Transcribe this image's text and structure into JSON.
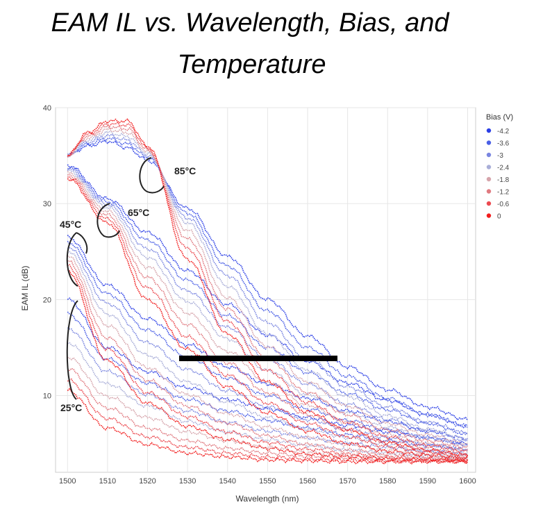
{
  "title_line1": "EAM IL vs. Wavelength, Bias, and",
  "title_line2": "Temperature",
  "chart_data": {
    "type": "scatter",
    "xlabel": "Wavelength (nm)",
    "ylabel": "EAM IL (dB)",
    "xlim": [
      1497,
      1602
    ],
    "ylim": [
      2,
      40
    ],
    "xticks": [
      1500,
      1510,
      1520,
      1530,
      1540,
      1550,
      1560,
      1570,
      1580,
      1590,
      1600
    ],
    "yticks": [
      10,
      20,
      30,
      40
    ],
    "grid": true,
    "legend": {
      "title": "Bias (V)",
      "placement": "right",
      "entries": [
        {
          "label": "-4.2",
          "color": "#2b3fe6"
        },
        {
          "label": "-3.6",
          "color": "#4a5fe6"
        },
        {
          "label": "-3",
          "color": "#7a86e0"
        },
        {
          "label": "-2.4",
          "color": "#a9aed8"
        },
        {
          "label": "-1.8",
          "color": "#d6a4ab"
        },
        {
          "label": "-1.2",
          "color": "#e07a80"
        },
        {
          "label": "-0.6",
          "color": "#ec4a50"
        },
        {
          "label": "0",
          "color": "#f21c1c"
        }
      ]
    },
    "annotations": [
      "25°C",
      "45°C",
      "65°C",
      "85°C"
    ],
    "series": [
      {
        "temp": "25°C",
        "bias": "-4.2",
        "x": [
          1500,
          1510,
          1520,
          1530,
          1540,
          1550,
          1560,
          1570,
          1580,
          1590,
          1600
        ],
        "y": [
          20.0,
          15.0,
          12.5,
          10.8,
          9.6,
          8.6,
          7.7,
          6.9,
          6.2,
          5.6,
          5.0
        ]
      },
      {
        "temp": "25°C",
        "bias": "-3.6",
        "x": [
          1500,
          1510,
          1520,
          1530,
          1540,
          1550,
          1560,
          1570,
          1580,
          1590,
          1600
        ],
        "y": [
          18.5,
          13.8,
          11.3,
          9.6,
          8.4,
          7.4,
          6.6,
          5.9,
          5.3,
          4.8,
          4.4
        ]
      },
      {
        "temp": "25°C",
        "bias": "-3",
        "x": [
          1500,
          1510,
          1520,
          1530,
          1540,
          1550,
          1560,
          1570,
          1580,
          1590,
          1600
        ],
        "y": [
          17.0,
          12.5,
          10.1,
          8.4,
          7.2,
          6.3,
          5.6,
          5.0,
          4.6,
          4.2,
          3.9
        ]
      },
      {
        "temp": "25°C",
        "bias": "-2.4",
        "x": [
          1500,
          1510,
          1520,
          1530,
          1540,
          1550,
          1560,
          1570,
          1580,
          1590,
          1600
        ],
        "y": [
          15.5,
          11.2,
          8.9,
          7.3,
          6.2,
          5.4,
          4.8,
          4.3,
          4.0,
          3.7,
          3.5
        ]
      },
      {
        "temp": "25°C",
        "bias": "-1.8",
        "x": [
          1500,
          1510,
          1520,
          1530,
          1540,
          1550,
          1560,
          1570,
          1580,
          1590,
          1600
        ],
        "y": [
          14.0,
          9.9,
          7.7,
          6.2,
          5.3,
          4.6,
          4.1,
          3.8,
          3.6,
          3.4,
          3.3
        ]
      },
      {
        "temp": "25°C",
        "bias": "-1.2",
        "x": [
          1500,
          1510,
          1520,
          1530,
          1540,
          1550,
          1560,
          1570,
          1580,
          1590,
          1600
        ],
        "y": [
          12.8,
          8.7,
          6.6,
          5.3,
          4.5,
          4.0,
          3.7,
          3.5,
          3.3,
          3.2,
          3.2
        ]
      },
      {
        "temp": "25°C",
        "bias": "-0.6",
        "x": [
          1500,
          1510,
          1520,
          1530,
          1540,
          1550,
          1560,
          1570,
          1580,
          1590,
          1600
        ],
        "y": [
          11.6,
          7.6,
          5.7,
          4.6,
          4.0,
          3.6,
          3.4,
          3.3,
          3.2,
          3.2,
          3.1
        ]
      },
      {
        "temp": "25°C",
        "bias": "0",
        "x": [
          1500,
          1510,
          1520,
          1530,
          1540,
          1550,
          1560,
          1570,
          1580,
          1590,
          1600
        ],
        "y": [
          10.5,
          6.6,
          4.9,
          4.0,
          3.6,
          3.3,
          3.2,
          3.1,
          3.1,
          3.1,
          3.1
        ]
      },
      {
        "temp": "45°C",
        "bias": "-4.2",
        "x": [
          1500,
          1510,
          1520,
          1530,
          1540,
          1550,
          1560,
          1570,
          1580,
          1590,
          1600
        ],
        "y": [
          26.5,
          21.5,
          18.0,
          15.3,
          13.0,
          11.2,
          9.7,
          8.4,
          7.3,
          6.3,
          5.5
        ]
      },
      {
        "temp": "45°C",
        "bias": "-3.6",
        "x": [
          1500,
          1510,
          1520,
          1530,
          1540,
          1550,
          1560,
          1570,
          1580,
          1590,
          1600
        ],
        "y": [
          26.0,
          20.6,
          16.8,
          14.0,
          11.8,
          10.0,
          8.6,
          7.4,
          6.4,
          5.6,
          4.9
        ]
      },
      {
        "temp": "45°C",
        "bias": "-3",
        "x": [
          1500,
          1510,
          1520,
          1530,
          1540,
          1550,
          1560,
          1570,
          1580,
          1590,
          1600
        ],
        "y": [
          25.5,
          19.6,
          15.5,
          12.7,
          10.5,
          8.8,
          7.5,
          6.5,
          5.6,
          4.9,
          4.3
        ]
      },
      {
        "temp": "45°C",
        "bias": "-2.4",
        "x": [
          1500,
          1510,
          1520,
          1530,
          1540,
          1550,
          1560,
          1570,
          1580,
          1590,
          1600
        ],
        "y": [
          25.0,
          18.5,
          14.2,
          11.4,
          9.3,
          7.7,
          6.5,
          5.6,
          4.9,
          4.3,
          3.9
        ]
      },
      {
        "temp": "45°C",
        "bias": "-1.8",
        "x": [
          1500,
          1510,
          1520,
          1530,
          1540,
          1550,
          1560,
          1570,
          1580,
          1590,
          1600
        ],
        "y": [
          24.5,
          17.3,
          12.9,
          10.1,
          8.1,
          6.7,
          5.6,
          4.9,
          4.3,
          3.9,
          3.6
        ]
      },
      {
        "temp": "45°C",
        "bias": "-1.2",
        "x": [
          1500,
          1510,
          1520,
          1530,
          1540,
          1550,
          1560,
          1570,
          1580,
          1590,
          1600
        ],
        "y": [
          24.0,
          16.0,
          11.6,
          8.9,
          7.1,
          5.8,
          4.9,
          4.3,
          3.9,
          3.6,
          3.4
        ]
      },
      {
        "temp": "45°C",
        "bias": "-0.6",
        "x": [
          1500,
          1510,
          1520,
          1530,
          1540,
          1550,
          1560,
          1570,
          1580,
          1590,
          1600
        ],
        "y": [
          23.5,
          14.8,
          10.3,
          7.8,
          6.2,
          5.1,
          4.4,
          3.9,
          3.6,
          3.4,
          3.3
        ]
      },
      {
        "temp": "45°C",
        "bias": "0",
        "x": [
          1500,
          1510,
          1520,
          1530,
          1540,
          1550,
          1560,
          1570,
          1580,
          1590,
          1600
        ],
        "y": [
          23.0,
          13.6,
          9.2,
          6.8,
          5.4,
          4.5,
          3.9,
          3.6,
          3.4,
          3.3,
          3.2
        ]
      },
      {
        "temp": "65°C",
        "bias": "-4.2",
        "x": [
          1500,
          1510,
          1520,
          1530,
          1540,
          1550,
          1560,
          1570,
          1580,
          1590,
          1600
        ],
        "y": [
          34.0,
          30.5,
          27.0,
          23.0,
          19.5,
          16.3,
          13.6,
          11.3,
          9.5,
          8.0,
          6.8
        ]
      },
      {
        "temp": "65°C",
        "bias": "-3.6",
        "x": [
          1500,
          1510,
          1520,
          1530,
          1540,
          1550,
          1560,
          1570,
          1580,
          1590,
          1600
        ],
        "y": [
          33.8,
          30.2,
          26.2,
          22.0,
          18.3,
          15.0,
          12.4,
          10.2,
          8.5,
          7.1,
          6.0
        ]
      },
      {
        "temp": "65°C",
        "bias": "-3",
        "x": [
          1500,
          1510,
          1520,
          1530,
          1540,
          1550,
          1560,
          1570,
          1580,
          1590,
          1600
        ],
        "y": [
          33.6,
          29.9,
          25.3,
          20.9,
          17.1,
          13.8,
          11.2,
          9.1,
          7.5,
          6.3,
          5.3
        ]
      },
      {
        "temp": "65°C",
        "bias": "-2.4",
        "x": [
          1500,
          1510,
          1520,
          1530,
          1540,
          1550,
          1560,
          1570,
          1580,
          1590,
          1600
        ],
        "y": [
          33.4,
          29.6,
          24.4,
          19.8,
          15.9,
          12.6,
          10.1,
          8.2,
          6.7,
          5.6,
          4.8
        ]
      },
      {
        "temp": "65°C",
        "bias": "-1.8",
        "x": [
          1500,
          1510,
          1520,
          1530,
          1540,
          1550,
          1560,
          1570,
          1580,
          1590,
          1600
        ],
        "y": [
          33.2,
          29.2,
          23.4,
          18.6,
          14.6,
          11.4,
          9.0,
          7.2,
          5.9,
          5.0,
          4.3
        ]
      },
      {
        "temp": "65°C",
        "bias": "-1.2",
        "x": [
          1500,
          1510,
          1520,
          1530,
          1540,
          1550,
          1560,
          1570,
          1580,
          1590,
          1600
        ],
        "y": [
          33.0,
          28.8,
          22.3,
          17.4,
          13.4,
          10.3,
          8.0,
          6.4,
          5.2,
          4.5,
          3.9
        ]
      },
      {
        "temp": "65°C",
        "bias": "-0.6",
        "x": [
          1500,
          1510,
          1520,
          1530,
          1540,
          1550,
          1560,
          1570,
          1580,
          1590,
          1600
        ],
        "y": [
          32.8,
          28.4,
          21.2,
          16.1,
          12.1,
          9.2,
          7.1,
          5.7,
          4.7,
          4.1,
          3.6
        ]
      },
      {
        "temp": "65°C",
        "bias": "0",
        "x": [
          1500,
          1510,
          1520,
          1530,
          1540,
          1550,
          1560,
          1570,
          1580,
          1590,
          1600
        ],
        "y": [
          32.6,
          28.0,
          20.0,
          14.8,
          10.9,
          8.2,
          6.3,
          5.0,
          4.2,
          3.8,
          3.4
        ]
      },
      {
        "temp": "85°C",
        "bias": "-4.2",
        "x": [
          1500,
          1505,
          1510,
          1515,
          1520,
          1530,
          1540,
          1550,
          1560,
          1570,
          1580,
          1590,
          1600
        ],
        "y": [
          35.0,
          36.0,
          36.5,
          35.8,
          34.5,
          29.5,
          24.5,
          20.0,
          16.2,
          13.0,
          10.6,
          8.8,
          7.5
        ]
      },
      {
        "temp": "85°C",
        "bias": "-3.6",
        "x": [
          1500,
          1505,
          1510,
          1515,
          1520,
          1530,
          1540,
          1550,
          1560,
          1570,
          1580,
          1590,
          1600
        ],
        "y": [
          35.0,
          36.2,
          36.8,
          36.2,
          34.8,
          29.0,
          23.5,
          18.8,
          15.0,
          12.0,
          9.7,
          8.0,
          6.8
        ]
      },
      {
        "temp": "85°C",
        "bias": "-3",
        "x": [
          1500,
          1505,
          1510,
          1515,
          1520,
          1530,
          1540,
          1550,
          1560,
          1570,
          1580,
          1590,
          1600
        ],
        "y": [
          35.0,
          36.4,
          37.1,
          36.6,
          35.0,
          28.5,
          22.5,
          17.6,
          13.8,
          10.9,
          8.8,
          7.2,
          6.1
        ]
      },
      {
        "temp": "85°C",
        "bias": "-2.4",
        "x": [
          1500,
          1505,
          1510,
          1515,
          1520,
          1530,
          1540,
          1550,
          1560,
          1570,
          1580,
          1590,
          1600
        ],
        "y": [
          35.0,
          36.6,
          37.4,
          37.0,
          35.2,
          28.0,
          21.4,
          16.4,
          12.6,
          9.9,
          7.9,
          6.5,
          5.5
        ]
      },
      {
        "temp": "85°C",
        "bias": "-1.8",
        "x": [
          1500,
          1505,
          1510,
          1515,
          1520,
          1530,
          1540,
          1550,
          1560,
          1570,
          1580,
          1590,
          1600
        ],
        "y": [
          35.0,
          36.8,
          37.7,
          37.4,
          35.4,
          27.2,
          20.2,
          15.1,
          11.4,
          8.9,
          7.1,
          5.9,
          5.0
        ]
      },
      {
        "temp": "85°C",
        "bias": "-1.2",
        "x": [
          1500,
          1505,
          1510,
          1515,
          1520,
          1530,
          1540,
          1550,
          1560,
          1570,
          1580,
          1590,
          1600
        ],
        "y": [
          35.0,
          37.0,
          38.0,
          37.8,
          35.6,
          26.3,
          19.0,
          13.8,
          10.3,
          8.0,
          6.4,
          5.3,
          4.6
        ]
      },
      {
        "temp": "85°C",
        "bias": "-0.6",
        "x": [
          1500,
          1505,
          1510,
          1515,
          1520,
          1530,
          1540,
          1550,
          1560,
          1570,
          1580,
          1590,
          1600
        ],
        "y": [
          35.0,
          37.2,
          38.3,
          38.2,
          35.8,
          25.3,
          17.7,
          12.6,
          9.3,
          7.2,
          5.7,
          4.8,
          4.2
        ]
      },
      {
        "temp": "85°C",
        "bias": "0",
        "x": [
          1500,
          1505,
          1510,
          1515,
          1520,
          1530,
          1540,
          1550,
          1560,
          1570,
          1580,
          1590,
          1600
        ],
        "y": [
          35.0,
          37.4,
          38.6,
          38.6,
          36.0,
          24.2,
          16.4,
          11.4,
          8.3,
          6.4,
          5.1,
          4.3,
          3.8
        ]
      }
    ]
  }
}
